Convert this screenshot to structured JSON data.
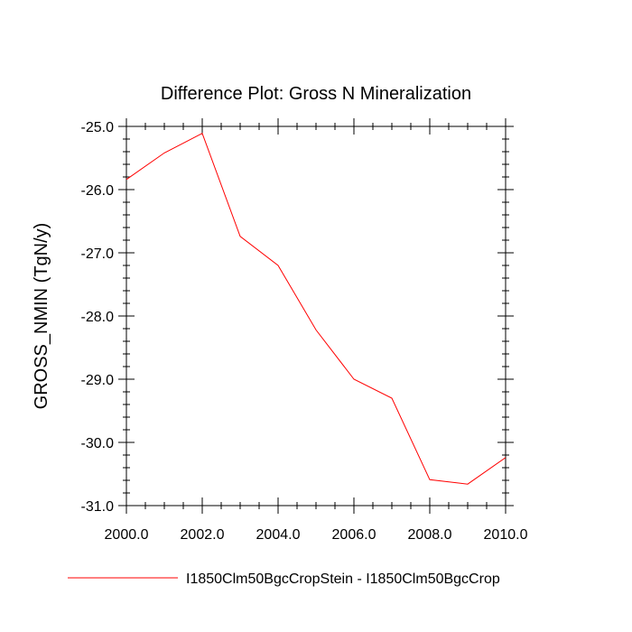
{
  "chart_data": {
    "type": "line",
    "title": "Difference Plot: Gross N Mineralization",
    "xlabel": "",
    "ylabel": "GROSS_NMIN  (TgN/y)",
    "xlim": [
      2000,
      2010
    ],
    "ylim": [
      -31,
      -25
    ],
    "x_ticks": [
      2000,
      2002,
      2004,
      2006,
      2008,
      2010
    ],
    "x_tick_labels": [
      "2000.0",
      "2002.0",
      "2004.0",
      "2006.0",
      "2008.0",
      "2010.0"
    ],
    "y_ticks": [
      -25,
      -26,
      -27,
      -28,
      -29,
      -30,
      -31
    ],
    "y_tick_labels": [
      "-25.0",
      "-26.0",
      "-27.0",
      "-28.0",
      "-29.0",
      "-30.0",
      "-31.0"
    ],
    "grid": false,
    "legend_position": "bottom",
    "series": [
      {
        "name": "I1850Clm50BgcCropStein - I1850Clm50BgcCrop",
        "color": "#ff0000",
        "x": [
          2000,
          2001,
          2002,
          2003,
          2004,
          2005,
          2006,
          2007,
          2008,
          2009,
          2010
        ],
        "y": [
          -25.84,
          -25.42,
          -25.11,
          -26.74,
          -27.2,
          -28.22,
          -29.0,
          -29.3,
          -30.59,
          -30.66,
          -30.24
        ]
      }
    ]
  }
}
